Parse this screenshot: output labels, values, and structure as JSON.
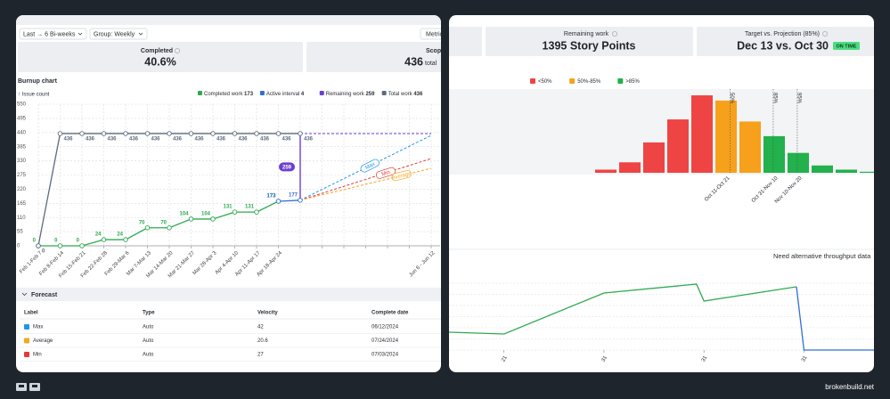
{
  "toolbar": {
    "range": "Last → 6 Bi-weeks",
    "group": "Group: Weekly",
    "metric": "Metric"
  },
  "stats": [
    {
      "label": "Completed",
      "value": "40.6%"
    },
    {
      "label": "Scop",
      "value": "436",
      "unit": "total"
    }
  ],
  "right_stats": [
    {
      "label": "Remaining work",
      "value": "1395 Story Points"
    },
    {
      "label": "Target vs. Projection (85%)",
      "value": "Dec 13 vs. Oct 30",
      "badge": "ON TIME"
    }
  ],
  "chart_data": [
    {
      "type": "line",
      "title": "Burnup chart",
      "y_label": "↑ Issue count",
      "categories": [
        "Feb 1-Feb 7",
        "Feb 8-Feb 14",
        "Feb 15-Feb 21",
        "Feb 22-Feb 28",
        "Feb 29-Mar 6",
        "Mar 7-Mar 13",
        "Mar 14-Mar 20",
        "Mar 21-Mar 27",
        "Mar 28-Apr 3",
        "Apr 4-Apr 10",
        "Apr 11-Apr 17",
        "Apr 18-Apr 24",
        null,
        null,
        null,
        null,
        null,
        null,
        "Jun 6 - Jun 12"
      ],
      "ylim": [
        0,
        550
      ],
      "yticks": [
        0,
        55,
        110,
        165,
        220,
        275,
        330,
        385,
        440,
        495,
        550
      ],
      "grid": true,
      "series": [
        {
          "name": "Completed work",
          "total": 173,
          "color": "#2eaa4f",
          "label_position": "above",
          "values": [
            0,
            0,
            0,
            24,
            24,
            70,
            70,
            104,
            104,
            131,
            131,
            173,
            null,
            null,
            null,
            null,
            null,
            null,
            null
          ]
        },
        {
          "name": "Active interval",
          "total": 4,
          "color": "#2f6fd6",
          "label_position": "above",
          "values": [
            null,
            null,
            null,
            null,
            null,
            null,
            null,
            null,
            null,
            null,
            null,
            173,
            177,
            null,
            null,
            null,
            null,
            null,
            null
          ]
        },
        {
          "name": "Remaining work",
          "total": 259,
          "color": "#6b3fd4",
          "stacked": true,
          "values": [
            null,
            null,
            null,
            null,
            null,
            null,
            null,
            null,
            null,
            null,
            null,
            null,
            259,
            null,
            null,
            null,
            null,
            null,
            null
          ]
        },
        {
          "name": "Total work",
          "total": 436,
          "color": "#5d6b7e",
          "label_position": "below",
          "values": [
            0,
            436,
            436,
            436,
            436,
            436,
            436,
            436,
            436,
            436,
            436,
            436,
            436,
            null,
            null,
            null,
            null,
            null,
            null
          ],
          "projection": [
            null,
            null,
            null,
            null,
            null,
            null,
            null,
            null,
            null,
            null,
            null,
            null,
            436,
            436,
            436,
            436,
            436,
            436,
            436
          ],
          "projection_color": "#6b3fd4"
        }
      ],
      "forecasts": [
        {
          "name": "Max",
          "color": "#2196e8",
          "values": [
            null,
            null,
            null,
            null,
            null,
            null,
            null,
            null,
            null,
            null,
            null,
            null,
            177,
            219,
            261,
            303,
            345,
            387,
            429
          ]
        },
        {
          "name": "Min",
          "color": "#e53935",
          "values": [
            null,
            null,
            null,
            null,
            null,
            null,
            null,
            null,
            null,
            null,
            null,
            null,
            177,
            204,
            231,
            258,
            285,
            312,
            339
          ]
        },
        {
          "name": "Average",
          "color": "#f5a623",
          "values": [
            null,
            null,
            null,
            null,
            null,
            null,
            null,
            null,
            null,
            null,
            null,
            null,
            177,
            198,
            218,
            239,
            259,
            280,
            301
          ]
        }
      ]
    },
    {
      "type": "bar",
      "ylim": [
        0,
        80
      ],
      "categories": [
        null,
        null,
        null,
        null,
        null,
        "Oct 11-Oct 21",
        null,
        "Oct 31-Nov 10",
        "Nov 10-Nov 20",
        null,
        null,
        null
      ],
      "series": [
        {
          "name": "<50%",
          "color": "#ef4444",
          "values": [
            3,
            10,
            29,
            51,
            74,
            null,
            null,
            null,
            null,
            null,
            null,
            null
          ]
        },
        {
          "name": "50%-85%",
          "color": "#f7a01c",
          "values": [
            null,
            null,
            null,
            null,
            null,
            69,
            49,
            null,
            null,
            null,
            null,
            null
          ]
        },
        {
          "name": ">85%",
          "color": "#22b14c",
          "values": [
            null,
            null,
            null,
            null,
            null,
            null,
            null,
            35,
            19,
            7,
            3,
            1
          ]
        }
      ],
      "markers": [
        {
          "label": "50%",
          "at": 5.17
        },
        {
          "label": "85%",
          "at": 6.96
        },
        {
          "label": "95%",
          "at": 7.96
        }
      ]
    },
    {
      "type": "line",
      "title": "Need alternative throughput data",
      "xlim": [
        -0.1,
        8.4
      ],
      "ylim": [
        0,
        100
      ],
      "xticks": [
        {
          "value": 1,
          "label": "21"
        },
        {
          "value": 3,
          "label": "31"
        },
        {
          "value": 5,
          "label": "31"
        },
        {
          "value": 7,
          "label": "31"
        }
      ],
      "yticks": [
        0,
        12.5,
        25,
        37.5,
        50,
        62.5,
        75
      ],
      "series": [
        {
          "color": "#2eaa4f",
          "x": [
            -0.1,
            1,
            3,
            4.85,
            5,
            6.85
          ],
          "values": [
            20,
            18,
            64,
            74,
            55,
            71
          ]
        },
        {
          "color": "#2f6fd6",
          "x": [
            6.85,
            7,
            8.4
          ],
          "values": [
            71,
            0,
            0
          ]
        }
      ]
    }
  ],
  "forecast": {
    "title": "Forecast",
    "columns": [
      "Label",
      "Type",
      "Velocity",
      "Complete date"
    ],
    "rows": [
      [
        "Max",
        "Auto",
        "42",
        "06/12/2024"
      ],
      [
        "Average",
        "Auto",
        "20.6",
        "07/24/2024"
      ],
      [
        "Min",
        "Auto",
        "27",
        "07/03/2024"
      ]
    ]
  },
  "footer": "brokenbuild.net"
}
